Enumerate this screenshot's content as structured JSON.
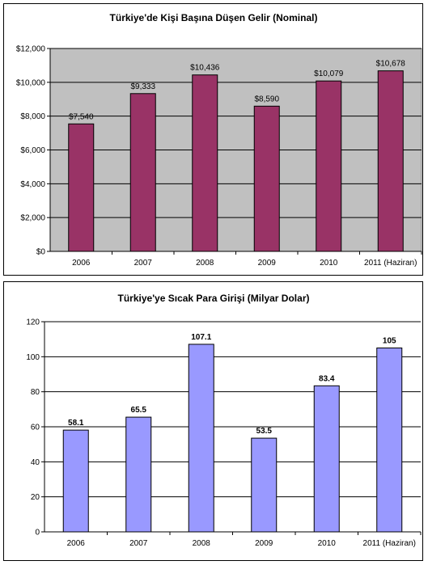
{
  "chart_data": [
    {
      "type": "bar",
      "title": "Türkiye'de Kişi Başına Düşen Gelir (Nominal)",
      "categories": [
        "2006",
        "2007",
        "2008",
        "2009",
        "2010",
        "2011 (Haziran)"
      ],
      "values": [
        7540,
        9333,
        10436,
        8590,
        10079,
        10678
      ],
      "value_labels": [
        "$7,540",
        "$9,333",
        "$10,436",
        "$8,590",
        "$10,079",
        "$10,678"
      ],
      "ylim": [
        0,
        12000
      ],
      "yticks": [
        0,
        2000,
        4000,
        6000,
        8000,
        10000,
        12000
      ],
      "ytick_labels": [
        "$0",
        "$2,000",
        "$4,000",
        "$6,000",
        "$8,000",
        "$10,000",
        "$12,000"
      ],
      "plot_bg": "#c0c0c0",
      "bar_color": "#993366",
      "grid": true,
      "xlabel": "",
      "ylabel": ""
    },
    {
      "type": "bar",
      "title": "Türkiye'ye Sıcak Para Girişi (Milyar Dolar)",
      "categories": [
        "2006",
        "2007",
        "2008",
        "2009",
        "2010",
        "2011 (Haziran)"
      ],
      "values": [
        58.1,
        65.5,
        107.1,
        53.5,
        83.4,
        105
      ],
      "value_labels": [
        "58.1",
        "65.5",
        "107.1",
        "53.5",
        "83.4",
        "105"
      ],
      "ylim": [
        0,
        120
      ],
      "yticks": [
        0,
        20,
        40,
        60,
        80,
        100,
        120
      ],
      "ytick_labels": [
        "0",
        "20",
        "40",
        "60",
        "80",
        "100",
        "120"
      ],
      "plot_bg": "#ffffff",
      "bar_color": "#9999ff",
      "grid": true,
      "xlabel": "",
      "ylabel": ""
    }
  ]
}
